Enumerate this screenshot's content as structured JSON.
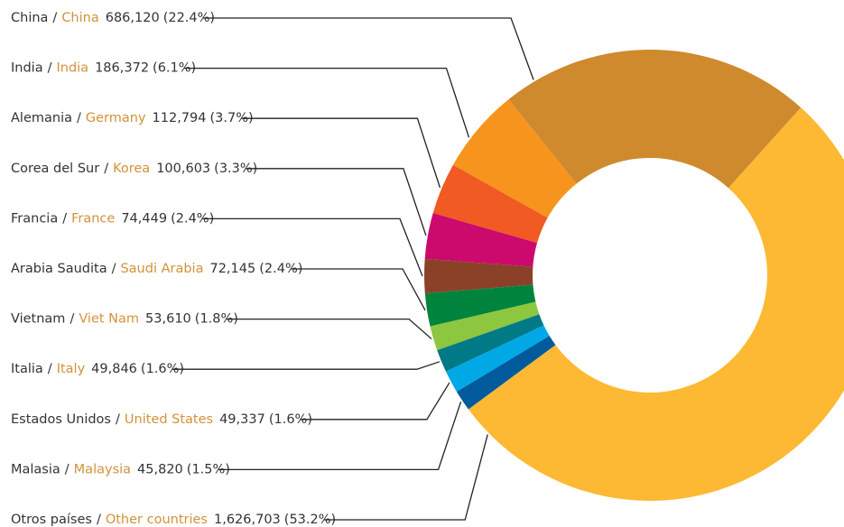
{
  "chart_data": {
    "type": "donut",
    "separator": "/",
    "categories": [
      "China",
      "India",
      "Alemania",
      "Corea del Sur",
      "Francia",
      "Arabia Saudita",
      "Vietnam",
      "Italia",
      "Estados Unidos",
      "Malasia",
      "Otros países"
    ],
    "categories_en": [
      "China",
      "India",
      "Germany",
      "Korea",
      "France",
      "Saudi Arabia",
      "Viet Nam",
      "Italy",
      "United States",
      "Malaysia",
      "Other countries"
    ],
    "values": [
      686120,
      186372,
      112794,
      100603,
      74449,
      72145,
      53610,
      49846,
      49337,
      45820,
      1626703
    ],
    "value_labels": [
      "686,120",
      "186,372",
      "112,794",
      "100,603",
      "74,449",
      "72,145",
      "53,610",
      "49,846",
      "49,337",
      "45,820",
      "1,626,703"
    ],
    "percents": [
      22.4,
      6.1,
      3.7,
      3.3,
      2.4,
      2.4,
      1.8,
      1.6,
      1.6,
      1.5,
      53.2
    ],
    "percent_labels": [
      "(22.4%)",
      "(6.1%)",
      "(3.7%)",
      "(3.3%)",
      "(2.4%)",
      "(2.4%)",
      "(1.8%)",
      "(1.6%)",
      "(1.6%)",
      "(1.5%)",
      "(53.2%)"
    ],
    "colors": [
      "#cf8a2e",
      "#f7941d",
      "#f15a22",
      "#cc0a6e",
      "#8b4128",
      "#00843d",
      "#8dc63f",
      "#007a87",
      "#00a8e6",
      "#005a9c",
      "#fdb933"
    ]
  }
}
